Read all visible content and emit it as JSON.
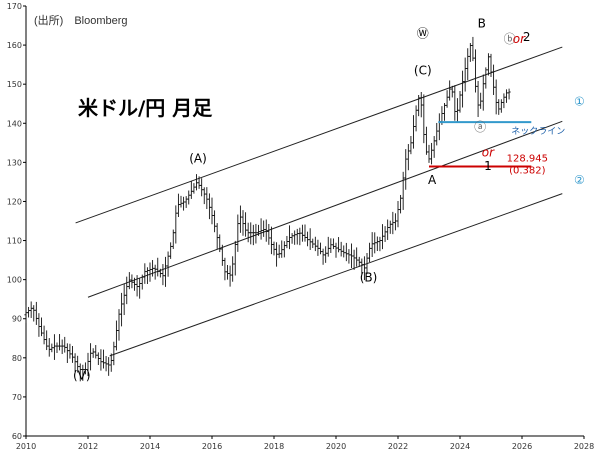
{
  "header": {
    "source": "(出所)　Bloomberg",
    "title": "米ドル/円 月足"
  },
  "chart_data": {
    "type": "candlestick",
    "xlim": [
      2010,
      2028
    ],
    "ylim": [
      60,
      170
    ],
    "x_ticks": [
      "2010",
      "2012",
      "2014",
      "2016",
      "2018",
      "2020",
      "2022",
      "2024",
      "2026",
      "2028"
    ],
    "y_ticks": [
      60,
      70,
      80,
      90,
      100,
      110,
      120,
      130,
      140,
      150,
      160,
      170
    ],
    "grid": false,
    "price_path": [
      [
        2010.0,
        91
      ],
      [
        2010.3,
        93
      ],
      [
        2010.5,
        88
      ],
      [
        2010.8,
        82
      ],
      [
        2011.0,
        83
      ],
      [
        2011.3,
        83
      ],
      [
        2011.6,
        80
      ],
      [
        2011.8,
        77
      ],
      [
        2012.0,
        77
      ],
      [
        2012.2,
        82
      ],
      [
        2012.5,
        79
      ],
      [
        2012.8,
        78
      ],
      [
        2012.9,
        82
      ],
      [
        2013.1,
        92
      ],
      [
        2013.4,
        100
      ],
      [
        2013.7,
        98
      ],
      [
        2013.9,
        102
      ],
      [
        2014.2,
        103
      ],
      [
        2014.5,
        101
      ],
      [
        2014.8,
        110
      ],
      [
        2014.95,
        119
      ],
      [
        2015.2,
        120
      ],
      [
        2015.45,
        123
      ],
      [
        2015.6,
        125
      ],
      [
        2015.9,
        121
      ],
      [
        2016.1,
        116
      ],
      [
        2016.3,
        109
      ],
      [
        2016.5,
        102
      ],
      [
        2016.7,
        101
      ],
      [
        2016.9,
        113
      ],
      [
        2016.95,
        117
      ],
      [
        2017.2,
        112
      ],
      [
        2017.5,
        112
      ],
      [
        2017.8,
        113
      ],
      [
        2018.0,
        109
      ],
      [
        2018.2,
        106
      ],
      [
        2018.6,
        111
      ],
      [
        2018.9,
        112
      ],
      [
        2019.2,
        110
      ],
      [
        2019.5,
        108
      ],
      [
        2019.7,
        106
      ],
      [
        2019.9,
        109
      ],
      [
        2020.1,
        108
      ],
      [
        2020.3,
        107
      ],
      [
        2020.6,
        106
      ],
      [
        2020.9,
        104
      ],
      [
        2021.0,
        103
      ],
      [
        2021.2,
        109
      ],
      [
        2021.5,
        110
      ],
      [
        2021.8,
        114
      ],
      [
        2022.0,
        115
      ],
      [
        2022.2,
        122
      ],
      [
        2022.3,
        130
      ],
      [
        2022.5,
        135
      ],
      [
        2022.7,
        145
      ],
      [
        2022.8,
        148
      ],
      [
        2022.9,
        138
      ],
      [
        2023.05,
        130
      ],
      [
        2023.2,
        134
      ],
      [
        2023.4,
        140
      ],
      [
        2023.6,
        145
      ],
      [
        2023.8,
        150
      ],
      [
        2023.95,
        141
      ],
      [
        2024.1,
        148
      ],
      [
        2024.3,
        156
      ],
      [
        2024.45,
        161
      ],
      [
        2024.6,
        148
      ],
      [
        2024.7,
        143
      ],
      [
        2024.85,
        151
      ],
      [
        2025.0,
        157
      ],
      [
        2025.15,
        150
      ],
      [
        2025.3,
        143
      ],
      [
        2025.45,
        146
      ],
      [
        2025.6,
        148
      ]
    ],
    "channel_lines": [
      {
        "from": [
          2011.6,
          114.5
        ],
        "to": [
          2027.3,
          159.5
        ]
      },
      {
        "from": [
          2012.0,
          95.5
        ],
        "to": [
          2027.3,
          140.5
        ]
      },
      {
        "from": [
          2012.7,
          80.5
        ],
        "to": [
          2027.3,
          122.0
        ]
      }
    ],
    "horizontal_lines": [
      {
        "label": "ネックライン",
        "y": 140.3,
        "x": [
          2023.3,
          2026.3
        ],
        "color": "#3399cc"
      },
      {
        "label": "128.945",
        "sub": "(0.382)",
        "y": 128.945,
        "x": [
          2023.0,
          2026.3
        ],
        "color": "#cc0000"
      }
    ],
    "wave_labels": [
      {
        "text": "(V)",
        "x": 2011.8,
        "y": 74.5,
        "color": "#000000"
      },
      {
        "text": "(A)",
        "x": 2015.55,
        "y": 130.0,
        "color": "#000000"
      },
      {
        "text": "(B)",
        "x": 2021.05,
        "y": 99.5,
        "color": "#000000"
      },
      {
        "text": "(C)",
        "x": 2022.8,
        "y": 152.5,
        "color": "#000000"
      },
      {
        "text": "Ⓦ",
        "x": 2022.8,
        "y": 162.0,
        "color": "#000000"
      },
      {
        "text": "A",
        "x": 2023.1,
        "y": 124.5,
        "color": "#000000"
      },
      {
        "text": "1",
        "x": 2024.9,
        "y": 128.0,
        "color": "#000000"
      },
      {
        "text": "or",
        "x": 2024.9,
        "y": 131.5,
        "color": "#cc0000"
      },
      {
        "text": "B",
        "x": 2024.7,
        "y": 164.5,
        "color": "#000000"
      },
      {
        "text": "ⓑ",
        "x": 2025.6,
        "y": 160.5,
        "color": "#666666"
      },
      {
        "text": "or",
        "x": 2025.9,
        "y": 160.5,
        "color": "#cc0000"
      },
      {
        "text": "2",
        "x": 2026.15,
        "y": 161.0,
        "color": "#000000"
      },
      {
        "text": "ⓐ",
        "x": 2024.65,
        "y": 138.0,
        "color": "#666666"
      },
      {
        "text": "①",
        "x": 2027.85,
        "y": 144.5,
        "color": "#3399cc"
      },
      {
        "text": "②",
        "x": 2027.85,
        "y": 124.5,
        "color": "#3399cc"
      }
    ]
  }
}
